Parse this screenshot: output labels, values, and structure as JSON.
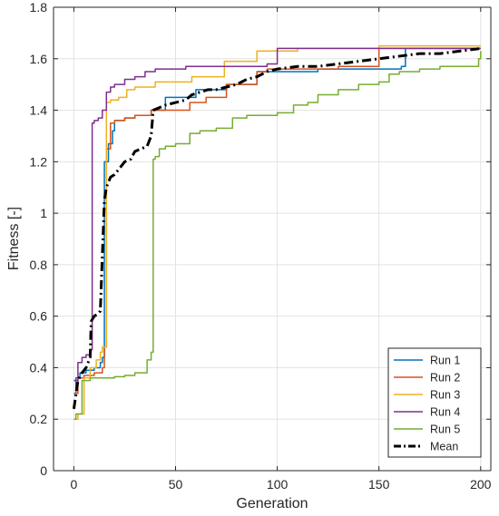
{
  "chart_data": {
    "type": "line",
    "title": "",
    "xlabel": "Generation",
    "ylabel": "Fitness [-]",
    "xlim": [
      -10,
      205
    ],
    "ylim": [
      0,
      1.8
    ],
    "xticks": [
      0,
      50,
      100,
      150,
      200
    ],
    "yticks": [
      0,
      0.2,
      0.4,
      0.6,
      0.8,
      1,
      1.2,
      1.4,
      1.6,
      1.8
    ],
    "xtick_labels": [
      "0",
      "50",
      "100",
      "150",
      "200"
    ],
    "ytick_labels": [
      "0",
      "0.2",
      "0.4",
      "0.6",
      "0.8",
      "1",
      "1.2",
      "1.4",
      "1.6",
      "1.8"
    ],
    "grid": true,
    "legend_position": "bottom-right",
    "series": [
      {
        "name": "Run 1",
        "color": "#0072BD",
        "style": "solid",
        "step": true,
        "x": [
          0,
          1,
          3,
          6,
          10,
          13,
          14,
          15,
          17,
          19,
          20,
          25,
          30,
          38,
          45,
          60,
          75,
          90,
          120,
          161,
          163,
          200
        ],
        "y": [
          0.3,
          0.36,
          0.38,
          0.39,
          0.4,
          0.42,
          0.44,
          1.2,
          1.27,
          1.32,
          1.36,
          1.37,
          1.38,
          1.4,
          1.45,
          1.48,
          1.5,
          1.55,
          1.56,
          1.57,
          1.64,
          1.64
        ]
      },
      {
        "name": "Run 2",
        "color": "#D95319",
        "style": "solid",
        "step": true,
        "x": [
          0,
          2,
          5,
          10,
          14,
          15,
          16,
          18,
          20,
          25,
          30,
          38,
          57,
          65,
          75,
          90,
          95,
          130,
          150,
          200
        ],
        "y": [
          0.3,
          0.36,
          0.37,
          0.38,
          0.4,
          0.48,
          1.25,
          1.35,
          1.36,
          1.37,
          1.38,
          1.4,
          1.43,
          1.45,
          1.5,
          1.55,
          1.56,
          1.57,
          1.64,
          1.64
        ]
      },
      {
        "name": "Run 3",
        "color": "#EDB120",
        "style": "solid",
        "step": true,
        "x": [
          0,
          2,
          5,
          8,
          11,
          13,
          14,
          16,
          18,
          22,
          26,
          30,
          40,
          58,
          74,
          90,
          110,
          150,
          200
        ],
        "y": [
          0.2,
          0.22,
          0.36,
          0.4,
          0.43,
          0.46,
          0.48,
          1.43,
          1.44,
          1.45,
          1.48,
          1.49,
          1.51,
          1.53,
          1.59,
          1.63,
          1.64,
          1.65,
          1.65
        ]
      },
      {
        "name": "Run 4",
        "color": "#7E2F8E",
        "style": "solid",
        "step": true,
        "x": [
          0,
          2,
          4,
          6,
          8,
          9,
          10,
          12,
          14,
          16,
          18,
          20,
          25,
          30,
          35,
          40,
          55,
          95,
          100,
          150,
          200
        ],
        "y": [
          0.35,
          0.42,
          0.44,
          0.45,
          0.47,
          1.35,
          1.36,
          1.37,
          1.4,
          1.47,
          1.49,
          1.5,
          1.52,
          1.53,
          1.55,
          1.56,
          1.57,
          1.58,
          1.64,
          1.64,
          1.64
        ]
      },
      {
        "name": "Run 5",
        "color": "#77AC30",
        "style": "solid",
        "step": true,
        "x": [
          0,
          1,
          4,
          8,
          12,
          20,
          25,
          30,
          33,
          36,
          38,
          39,
          40,
          42,
          45,
          50,
          57,
          62,
          70,
          78,
          85,
          100,
          108,
          115,
          120,
          130,
          140,
          150,
          155,
          160,
          170,
          180,
          195,
          199,
          200
        ],
        "y": [
          0.2,
          0.22,
          0.35,
          0.36,
          0.36,
          0.365,
          0.37,
          0.38,
          0.38,
          0.43,
          0.46,
          1.21,
          1.22,
          1.25,
          1.26,
          1.27,
          1.31,
          1.32,
          1.33,
          1.37,
          1.38,
          1.39,
          1.42,
          1.43,
          1.46,
          1.48,
          1.5,
          1.51,
          1.54,
          1.55,
          1.56,
          1.57,
          1.57,
          1.6,
          1.63
        ]
      },
      {
        "name": "Mean",
        "color": "#000000",
        "style": "dashdot",
        "step": false,
        "x": [
          0,
          2,
          4,
          6,
          8,
          8.5,
          10,
          12,
          13,
          15,
          16,
          18,
          20,
          22,
          25,
          28,
          30,
          33,
          36,
          38,
          39,
          42,
          45,
          50,
          55,
          58,
          62,
          66,
          70,
          75,
          80,
          85,
          90,
          95,
          100,
          110,
          120,
          130,
          140,
          150,
          160,
          170,
          180,
          190,
          200
        ],
        "y": [
          0.24,
          0.35,
          0.38,
          0.4,
          0.44,
          0.58,
          0.6,
          0.61,
          0.62,
          1.05,
          1.1,
          1.14,
          1.15,
          1.17,
          1.2,
          1.21,
          1.24,
          1.25,
          1.26,
          1.3,
          1.4,
          1.41,
          1.42,
          1.43,
          1.44,
          1.46,
          1.47,
          1.48,
          1.48,
          1.49,
          1.5,
          1.52,
          1.53,
          1.55,
          1.56,
          1.57,
          1.57,
          1.58,
          1.59,
          1.6,
          1.61,
          1.62,
          1.62,
          1.63,
          1.64
        ]
      }
    ]
  }
}
